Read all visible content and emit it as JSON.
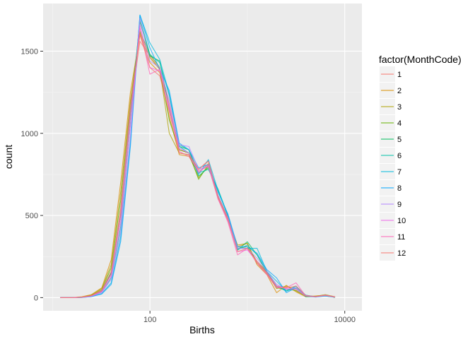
{
  "chart_data": {
    "type": "line",
    "xlabel": "Births",
    "ylabel": "count",
    "x_scale": "log10",
    "xlim": [
      8,
      15000
    ],
    "ylim": [
      -80,
      1790
    ],
    "x_ticks": [
      {
        "value": 100,
        "label": "100"
      },
      {
        "value": 10000,
        "label": "10000"
      }
    ],
    "y_ticks": [
      {
        "value": 0,
        "label": "0"
      },
      {
        "value": 500,
        "label": "500"
      },
      {
        "value": 1000,
        "label": "1000"
      },
      {
        "value": 1500,
        "label": "1500"
      }
    ],
    "grid": true,
    "legend": {
      "title": "factor(MonthCode)",
      "position": "right"
    },
    "x": [
      12,
      16,
      20,
      25,
      32,
      40,
      50,
      63,
      79,
      100,
      126,
      158,
      200,
      251,
      316,
      398,
      501,
      631,
      794,
      1000,
      1259,
      1585,
      1995,
      2512,
      3162,
      3981,
      5012,
      6310,
      7943
    ],
    "series": [
      {
        "name": "1",
        "color": "#F8766D",
        "values": [
          0,
          0,
          3,
          12,
          42,
          150,
          520,
          1150,
          1560,
          1470,
          1390,
          1180,
          900,
          880,
          780,
          835,
          610,
          490,
          300,
          300,
          210,
          145,
          70,
          65,
          55,
          15,
          5,
          15,
          5
        ]
      },
      {
        "name": "2",
        "color": "#DB8E00",
        "values": [
          0,
          0,
          5,
          18,
          60,
          230,
          700,
          1250,
          1600,
          1430,
          1370,
          1100,
          870,
          860,
          760,
          815,
          600,
          470,
          310,
          330,
          200,
          140,
          30,
          75,
          35,
          5,
          10,
          15,
          0
        ]
      },
      {
        "name": "3",
        "color": "#AEA200",
        "values": [
          0,
          0,
          4,
          15,
          55,
          200,
          640,
          1200,
          1610,
          1460,
          1390,
          1000,
          880,
          870,
          730,
          800,
          600,
          480,
          320,
          330,
          210,
          150,
          55,
          70,
          40,
          10,
          8,
          18,
          5
        ]
      },
      {
        "name": "4",
        "color": "#64B200",
        "values": [
          0,
          0,
          3,
          13,
          48,
          180,
          590,
          1180,
          1620,
          1480,
          1400,
          1080,
          900,
          880,
          720,
          810,
          620,
          490,
          300,
          310,
          220,
          160,
          60,
          50,
          45,
          10,
          5,
          15,
          3
        ]
      },
      {
        "name": "5",
        "color": "#00BD5C",
        "values": [
          0,
          0,
          2,
          10,
          40,
          150,
          500,
          1120,
          1680,
          1470,
          1440,
          1150,
          920,
          900,
          740,
          790,
          650,
          500,
          290,
          340,
          260,
          150,
          70,
          40,
          70,
          5,
          5,
          10,
          2
        ]
      },
      {
        "name": "6",
        "color": "#00C1A7",
        "values": [
          0,
          0,
          2,
          8,
          35,
          120,
          430,
          1060,
          1700,
          1480,
          1430,
          1230,
          930,
          900,
          760,
          780,
          660,
          500,
          290,
          320,
          260,
          160,
          70,
          40,
          60,
          10,
          5,
          12,
          2
        ]
      },
      {
        "name": "7",
        "color": "#00BADE",
        "values": [
          0,
          0,
          1,
          6,
          25,
          90,
          370,
          950,
          1720,
          1550,
          1450,
          1240,
          920,
          880,
          750,
          840,
          650,
          500,
          300,
          300,
          300,
          160,
          100,
          40,
          70,
          15,
          5,
          15,
          3
        ]
      },
      {
        "name": "8",
        "color": "#00A6FF",
        "values": [
          0,
          0,
          1,
          6,
          22,
          80,
          340,
          920,
          1720,
          1520,
          1390,
          1260,
          940,
          900,
          790,
          810,
          640,
          510,
          310,
          310,
          270,
          170,
          120,
          30,
          60,
          10,
          3,
          10,
          2
        ]
      },
      {
        "name": "9",
        "color": "#B385FF",
        "values": [
          0,
          0,
          2,
          8,
          30,
          110,
          400,
          980,
          1700,
          1440,
          1400,
          1200,
          930,
          920,
          780,
          800,
          620,
          490,
          300,
          300,
          240,
          160,
          80,
          50,
          60,
          12,
          5,
          12,
          3
        ]
      },
      {
        "name": "10",
        "color": "#EF67EB",
        "values": [
          0,
          0,
          2,
          9,
          35,
          130,
          460,
          1050,
          1660,
          1400,
          1380,
          1160,
          910,
          880,
          760,
          810,
          600,
          470,
          280,
          290,
          220,
          150,
          70,
          55,
          50,
          10,
          5,
          15,
          4
        ]
      },
      {
        "name": "11",
        "color": "#FF63B6",
        "values": [
          0,
          0,
          3,
          11,
          40,
          140,
          500,
          1120,
          1640,
          1360,
          1390,
          1140,
          890,
          860,
          770,
          800,
          600,
          460,
          260,
          300,
          210,
          140,
          60,
          60,
          90,
          10,
          6,
          14,
          4
        ]
      },
      {
        "name": "12",
        "color": "#F8766D",
        "values": [
          0,
          0,
          3,
          12,
          45,
          160,
          540,
          1170,
          1600,
          1400,
          1350,
          1130,
          880,
          870,
          780,
          830,
          610,
          480,
          280,
          300,
          220,
          150,
          65,
          60,
          70,
          12,
          6,
          14,
          4
        ]
      }
    ]
  }
}
